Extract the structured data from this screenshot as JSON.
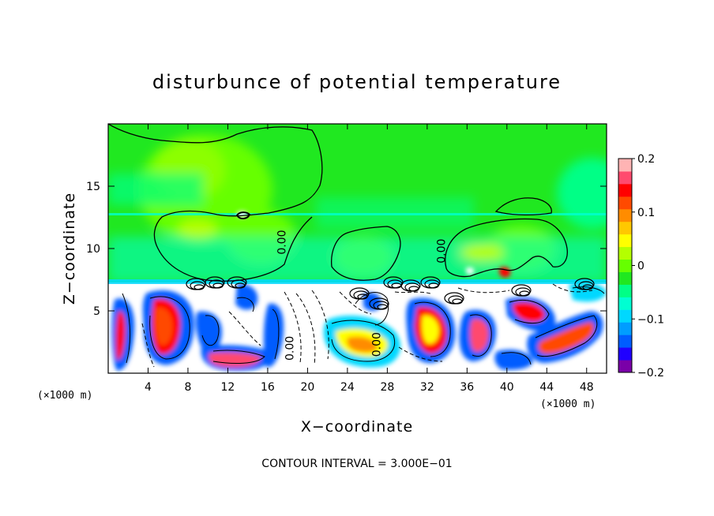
{
  "chart_data": {
    "type": "heatmap",
    "title": "disturbunce of potential temperature",
    "xlabel": "X−coordinate",
    "ylabel": "Z−coordinate",
    "x_unit_left": "(×1000 m)",
    "x_unit_right": "(×1000 m)",
    "xlim": [
      0,
      50
    ],
    "ylim": [
      0,
      20
    ],
    "x_ticks": [
      4,
      8,
      12,
      16,
      20,
      24,
      28,
      32,
      36,
      40,
      44,
      48
    ],
    "x_tick_labels": [
      "4",
      "8",
      "12",
      "16",
      "20",
      "24",
      "28",
      "32",
      "36",
      "40",
      "44",
      "48"
    ],
    "y_ticks": [
      5,
      10,
      15
    ],
    "y_tick_labels": [
      "5",
      "10",
      "15"
    ],
    "colorbar": {
      "range": [
        -0.2,
        0.2
      ],
      "ticks": [
        0.2,
        0.1,
        0,
        -0.1,
        -0.2
      ],
      "tick_labels": [
        "0.2",
        "0.1",
        "0",
        "−0.1",
        "−0.2"
      ],
      "colors": [
        "#7a00a8",
        "#2000ff",
        "#005cff",
        "#009dff",
        "#00d8ff",
        "#00ffd2",
        "#00ff86",
        "#20e820",
        "#66ff00",
        "#b4ff00",
        "#ffff00",
        "#ffc800",
        "#ff8c00",
        "#ff4a00",
        "#ff0000",
        "#ff4a6e",
        "#ffb4b4"
      ]
    },
    "footer": "CONTOUR INTERVAL = 3.000E−01",
    "contour_labels": [
      {
        "x": 17.8,
        "y": 10.5,
        "text": "0.00"
      },
      {
        "x": 33.8,
        "y": 9.8,
        "text": "0.00"
      },
      {
        "x": 18.6,
        "y": 2.0,
        "text": "0.00"
      },
      {
        "x": 27.3,
        "y": 2.3,
        "text": "0.00"
      }
    ],
    "grid": false,
    "legend_placement": "right"
  }
}
